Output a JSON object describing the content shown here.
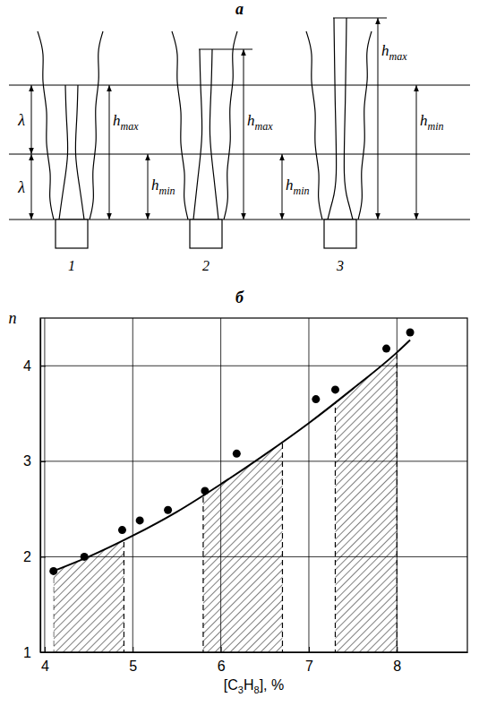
{
  "diagram": {
    "label": "а",
    "lambda": "λ",
    "h_max": {
      "text": "h",
      "sub": "max"
    },
    "h_min": {
      "text": "h",
      "sub": "min"
    },
    "flames": [
      1,
      2,
      3
    ]
  },
  "chart_data": {
    "type": "scatter",
    "label": "б",
    "x_label": [
      "[C",
      {
        "sub": "3"
      },
      "H",
      {
        "sub": "8"
      },
      "], %"
    ],
    "y_label": "n",
    "xlim": [
      3.95,
      8.8
    ],
    "ylim": [
      1,
      4.5
    ],
    "xticks": [
      4,
      5,
      6,
      7,
      8
    ],
    "yticks": [
      1,
      2,
      3,
      4
    ],
    "grid": true,
    "series": [
      {
        "type": "scatter",
        "marker": "circle",
        "color": "#000000",
        "x": [
          4.1,
          4.45,
          4.88,
          5.08,
          5.4,
          5.82,
          6.18,
          7.08,
          7.3,
          7.88,
          8.15
        ],
        "values": [
          1.85,
          2.0,
          2.28,
          2.38,
          2.49,
          2.69,
          3.08,
          3.65,
          3.75,
          4.18,
          4.35
        ]
      },
      {
        "type": "line",
        "line_style": "solid",
        "color": "#000000",
        "x": [
          4.1,
          4.5,
          5,
          5.5,
          6,
          6.5,
          7,
          7.5,
          8,
          8.15
        ],
        "values": [
          1.85,
          2.0,
          2.22,
          2.47,
          2.76,
          3.07,
          3.4,
          3.76,
          4.14,
          4.27
        ]
      }
    ],
    "shaded_ranges": [
      [
        4.1,
        4.9
      ],
      [
        5.8,
        6.7
      ],
      [
        7.3,
        8.0
      ]
    ]
  }
}
